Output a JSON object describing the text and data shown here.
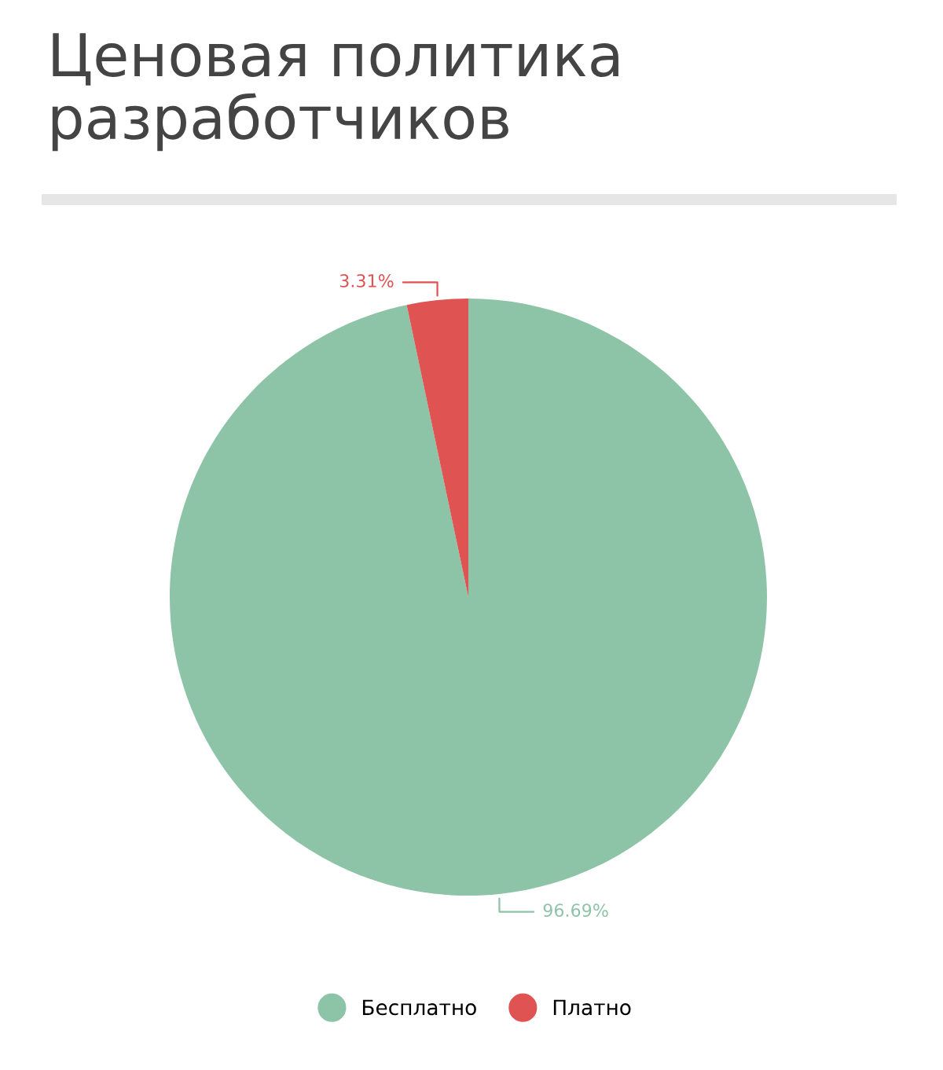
{
  "chart_data": {
    "type": "pie",
    "title": "Ценовая политика\nразработчиков",
    "categories": [
      "Бесплатно",
      "Платно"
    ],
    "values": [
      96.69,
      3.31
    ],
    "colors": [
      "#8dc3a7",
      "#e05353"
    ],
    "value_labels": [
      "96.69%",
      "3.31%"
    ],
    "legend": "bottom"
  }
}
